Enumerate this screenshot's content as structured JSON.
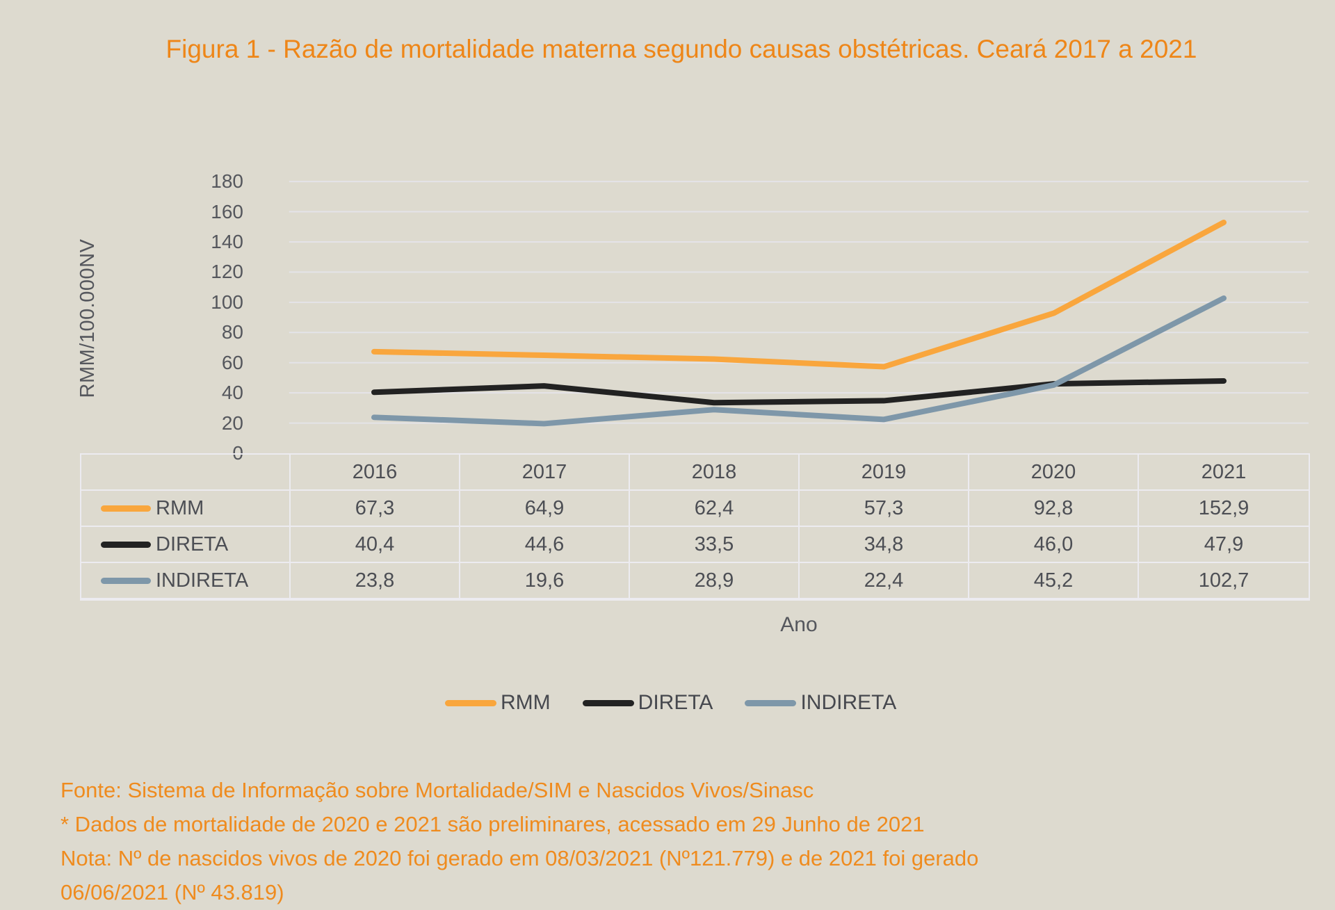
{
  "title": "Figura 1 - Razão de mortalidade materna segundo causas obstétricas. Ceará 2017 a 2021",
  "chart_data": {
    "type": "line",
    "x": [
      2016,
      2017,
      2018,
      2019,
      2020,
      2021
    ],
    "series": [
      {
        "name": "RMM",
        "color": "#f9a63d",
        "values": [
          67.3,
          64.9,
          62.4,
          57.3,
          92.8,
          152.9
        ]
      },
      {
        "name": "DIRETA",
        "color": "#222222",
        "values": [
          40.4,
          44.6,
          33.5,
          34.8,
          46.0,
          47.9
        ]
      },
      {
        "name": "INDIRETA",
        "color": "#7e97a9",
        "values": [
          23.8,
          19.6,
          28.9,
          22.4,
          45.2,
          102.7
        ]
      }
    ],
    "ylabel": "RMM/100.000NV",
    "xlabel": "Ano",
    "ylim": [
      0,
      180
    ],
    "ytick_step": 20,
    "grid": true,
    "legend_position": "bottom",
    "data_table_shown": true
  },
  "table": {
    "years": [
      "2016",
      "2017",
      "2018",
      "2019",
      "2020",
      "2021"
    ],
    "rows": [
      {
        "label": "RMM",
        "values": [
          "67,3",
          "64,9",
          "62,4",
          "57,3",
          "92,8",
          "152,9"
        ]
      },
      {
        "label": "DIRETA",
        "values": [
          "40,4",
          "44,6",
          "33,5",
          "34,8",
          "46,0",
          "47,9"
        ]
      },
      {
        "label": "INDIRETA",
        "values": [
          "23,8",
          "19,6",
          "28,9",
          "22,4",
          "45,2",
          "102,7"
        ]
      }
    ]
  },
  "footer": {
    "lines": [
      "Fonte: Sistema de Informação sobre Mortalidade/SIM e Nascidos Vivos/Sinasc",
      "* Dados de mortalidade de 2020 e 2021 são preliminares, acessado em 29 Junho de 2021",
      "Nota: Nº de nascidos vivos de 2020 foi gerado em 08/03/2021 (Nº121.779) e de 2021 foi gerado",
      "06/06/2021 (Nº 43.819)"
    ]
  },
  "colors": {
    "background": "#dddacf",
    "accent_orange_text": "#ee8618",
    "axis_text": "#55575d",
    "gridline": "#e4e3e8",
    "table_border": "#ecebf0"
  }
}
